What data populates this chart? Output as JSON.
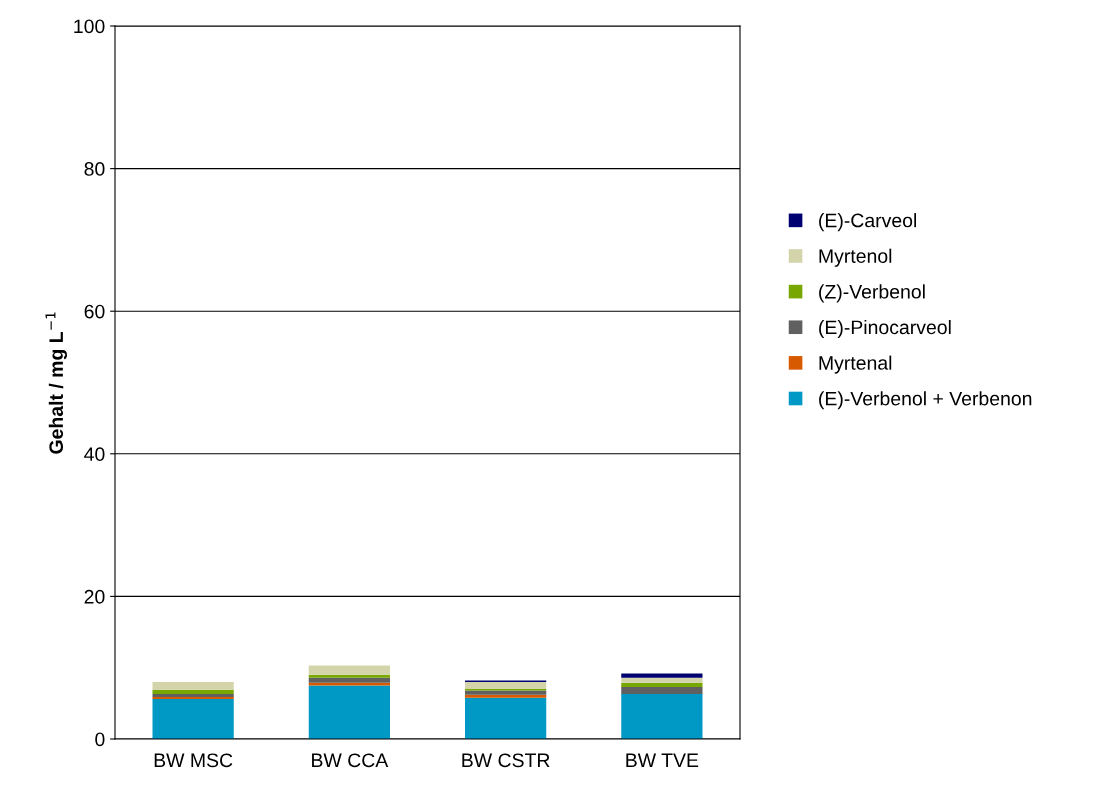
{
  "chart_data": {
    "type": "bar",
    "stacked": true,
    "ylabel": "Gehalt / mg L$^{−1}$",
    "categories": [
      "BW MSC",
      "BW CCA",
      "BW CSTR",
      "BW TVE"
    ],
    "series": [
      {
        "name": "(E)-Verbenol + Verbenon",
        "color": "#0099c6",
        "values": [
          5.6,
          7.5,
          5.8,
          6.3
        ]
      },
      {
        "name": "Myrtenal",
        "color": "#d85a00",
        "values": [
          0.3,
          0.4,
          0.4,
          0
        ]
      },
      {
        "name": "(E)-Pinocarveol",
        "color": "#606060",
        "values": [
          0.4,
          0.7,
          0.6,
          1.0
        ]
      },
      {
        "name": "(Z)-Verbenol",
        "color": "#78a800",
        "values": [
          0.6,
          0.4,
          0.2,
          0.6
        ]
      },
      {
        "name": "Myrtenol",
        "color": "#d4d4aa",
        "values": [
          1.1,
          1.3,
          1.0,
          0.7
        ]
      },
      {
        "name": "(E)-Carveol",
        "color": "#000070",
        "values": [
          0,
          0,
          0.2,
          0.6
        ]
      }
    ],
    "ylim": [
      0,
      100
    ],
    "yticks": [
      0,
      20,
      40,
      60,
      80,
      100
    ],
    "grid": "y",
    "legend": "right"
  }
}
